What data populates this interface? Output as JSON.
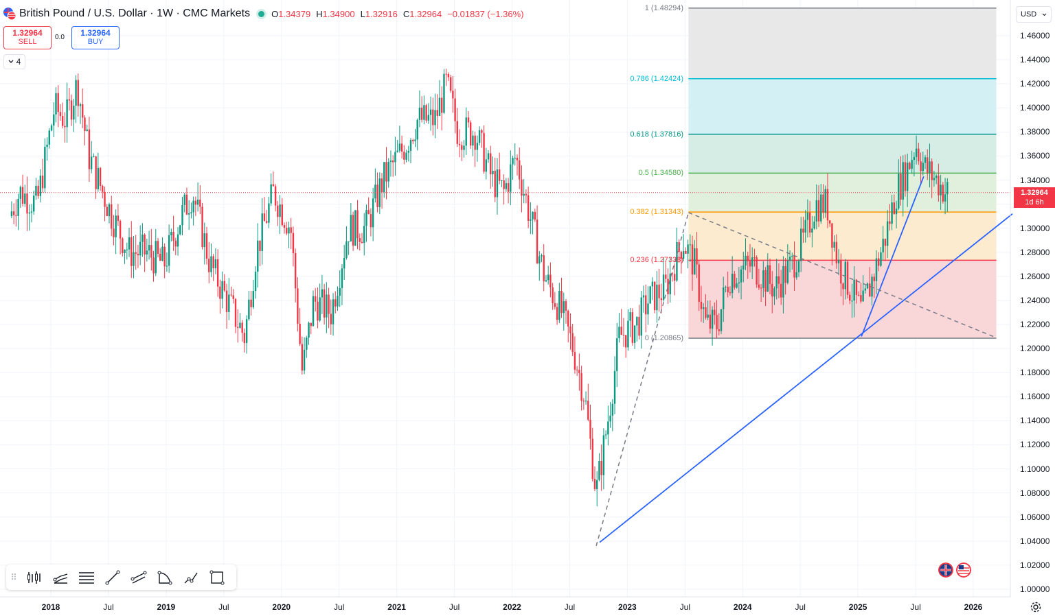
{
  "header": {
    "title": "British Pound / U.S. Dollar · 1W · CMC Markets",
    "ohlc": [
      {
        "k": "O",
        "v": "1.34379"
      },
      {
        "k": "H",
        "v": "1.34900"
      },
      {
        "k": "L",
        "v": "1.32916"
      },
      {
        "k": "C",
        "v": "1.32964"
      },
      {
        "k": "",
        "v": "−0.01837 (−1.36%)"
      }
    ]
  },
  "trade": {
    "sell_price": "1.32964",
    "sell_label": "SELL",
    "spread": "0.0",
    "buy_price": "1.32964",
    "buy_label": "BUY"
  },
  "indicators_count": "4",
  "currency_selector": "USD",
  "last_price": {
    "value": "1.32964",
    "countdown": "1d 6h"
  },
  "colors": {
    "up": "#089981",
    "down": "#f23645",
    "trendline": "#2962ff",
    "grid": "#f0f3fa"
  },
  "chart_data": {
    "type": "candlestick",
    "symbol": "GBPUSD",
    "interval": "1W",
    "ylim": [
      0.99,
      1.49
    ],
    "y_ticks": [
      "1.00000",
      "1.02000",
      "1.04000",
      "1.06000",
      "1.08000",
      "1.10000",
      "1.12000",
      "1.14000",
      "1.16000",
      "1.18000",
      "1.20000",
      "1.22000",
      "1.24000",
      "1.26000",
      "1.28000",
      "1.30000",
      "1.32000",
      "1.34000",
      "1.36000",
      "1.38000",
      "1.40000",
      "1.42000",
      "1.44000",
      "1.46000"
    ],
    "x_ticks": [
      {
        "label": "2018",
        "year": true,
        "t": 2018.0
      },
      {
        "label": "Jul",
        "year": false,
        "t": 2018.5
      },
      {
        "label": "2019",
        "year": true,
        "t": 2019.0
      },
      {
        "label": "Jul",
        "year": false,
        "t": 2019.5
      },
      {
        "label": "2020",
        "year": true,
        "t": 2020.0
      },
      {
        "label": "Jul",
        "year": false,
        "t": 2020.5
      },
      {
        "label": "2021",
        "year": true,
        "t": 2021.0
      },
      {
        "label": "Jul",
        "year": false,
        "t": 2021.5
      },
      {
        "label": "2022",
        "year": true,
        "t": 2022.0
      },
      {
        "label": "Jul",
        "year": false,
        "t": 2022.5
      },
      {
        "label": "2023",
        "year": true,
        "t": 2023.0
      },
      {
        "label": "Jul",
        "year": false,
        "t": 2023.5
      },
      {
        "label": "2024",
        "year": true,
        "t": 2024.0
      },
      {
        "label": "Jul",
        "year": false,
        "t": 2024.5
      },
      {
        "label": "2025",
        "year": true,
        "t": 2025.0
      },
      {
        "label": "Jul",
        "year": false,
        "t": 2025.5
      },
      {
        "label": "2026",
        "year": true,
        "t": 2026.0
      }
    ],
    "xlim": [
      2017.66,
      2026.3
    ],
    "price_anchors": [
      [
        2017.66,
        1.31
      ],
      [
        2017.75,
        1.33
      ],
      [
        2017.9,
        1.32
      ],
      [
        2018.05,
        1.4
      ],
      [
        2018.15,
        1.39
      ],
      [
        2018.25,
        1.42
      ],
      [
        2018.35,
        1.36
      ],
      [
        2018.55,
        1.31
      ],
      [
        2018.7,
        1.28
      ],
      [
        2018.85,
        1.28
      ],
      [
        2019.0,
        1.27
      ],
      [
        2019.15,
        1.31
      ],
      [
        2019.25,
        1.33
      ],
      [
        2019.4,
        1.27
      ],
      [
        2019.6,
        1.23
      ],
      [
        2019.7,
        1.21
      ],
      [
        2019.8,
        1.28
      ],
      [
        2019.95,
        1.33
      ],
      [
        2020.1,
        1.3
      ],
      [
        2020.2,
        1.18
      ],
      [
        2020.3,
        1.24
      ],
      [
        2020.45,
        1.23
      ],
      [
        2020.6,
        1.3
      ],
      [
        2020.75,
        1.3
      ],
      [
        2020.9,
        1.34
      ],
      [
        2021.1,
        1.37
      ],
      [
        2021.2,
        1.39
      ],
      [
        2021.35,
        1.39
      ],
      [
        2021.45,
        1.42
      ],
      [
        2021.55,
        1.38
      ],
      [
        2021.7,
        1.38
      ],
      [
        2021.85,
        1.34
      ],
      [
        2021.95,
        1.33
      ],
      [
        2022.05,
        1.36
      ],
      [
        2022.15,
        1.32
      ],
      [
        2022.3,
        1.26
      ],
      [
        2022.45,
        1.23
      ],
      [
        2022.55,
        1.2
      ],
      [
        2022.65,
        1.16
      ],
      [
        2022.75,
        1.08
      ],
      [
        2022.85,
        1.14
      ],
      [
        2022.95,
        1.21
      ],
      [
        2023.1,
        1.22
      ],
      [
        2023.2,
        1.24
      ],
      [
        2023.35,
        1.25
      ],
      [
        2023.5,
        1.29
      ],
      [
        2023.6,
        1.27
      ],
      [
        2023.7,
        1.22
      ],
      [
        2023.8,
        1.22
      ],
      [
        2023.9,
        1.26
      ],
      [
        2024.1,
        1.27
      ],
      [
        2024.3,
        1.25
      ],
      [
        2024.45,
        1.27
      ],
      [
        2024.55,
        1.29
      ],
      [
        2024.65,
        1.32
      ],
      [
        2024.75,
        1.32
      ],
      [
        2024.85,
        1.27
      ],
      [
        2024.95,
        1.25
      ],
      [
        2025.05,
        1.23
      ],
      [
        2025.15,
        1.26
      ],
      [
        2025.25,
        1.29
      ],
      [
        2025.35,
        1.33
      ],
      [
        2025.45,
        1.35
      ],
      [
        2025.52,
        1.37
      ],
      [
        2025.6,
        1.35
      ],
      [
        2025.7,
        1.34
      ],
      [
        2025.78,
        1.33
      ]
    ],
    "fibonacci": {
      "levels": [
        {
          "ratio": "1",
          "label": "1 (1.48294)",
          "price": 1.48294,
          "color": "#787b86",
          "fill": "#e8e8e8"
        },
        {
          "ratio": "0.786",
          "label": "0.786 (1.42424)",
          "price": 1.42424,
          "color": "#00bcd4",
          "fill": "#d3f0f5"
        },
        {
          "ratio": "0.618",
          "label": "0.618 (1.37816)",
          "price": 1.37816,
          "color": "#009688",
          "fill": "#d6ede6"
        },
        {
          "ratio": "0.5",
          "label": "0.5 (1.34580)",
          "price": 1.3458,
          "color": "#4caf50",
          "fill": "#e0f0dc"
        },
        {
          "ratio": "0.382",
          "label": "0.382 (1.31343)",
          "price": 1.31343,
          "color": "#ff9800",
          "fill": "#fdebd0"
        },
        {
          "ratio": "0.236",
          "label": "0.236 (1.27338)",
          "price": 1.27338,
          "color": "#f23645",
          "fill": "#f9d6d8"
        },
        {
          "ratio": "0",
          "label": "0 (1.20865)",
          "price": 1.20865,
          "color": "#787b86",
          "fill": null
        }
      ],
      "range_t": [
        2023.53,
        2026.2
      ]
    },
    "trendlines": [
      {
        "t1": 2022.76,
        "p1": 1.039,
        "t2": 2026.34,
        "p2": 1.312,
        "style": "solid"
      },
      {
        "t1": 2025.03,
        "p1": 1.21,
        "t2": 2025.57,
        "p2": 1.343,
        "style": "solid"
      },
      {
        "t1": 2022.73,
        "p1": 1.036,
        "t2": 2023.53,
        "p2": 1.313,
        "style": "dashed"
      },
      {
        "t1": 2023.53,
        "p1": 1.313,
        "t2": 2026.2,
        "p2": 1.209,
        "style": "dashed"
      }
    ]
  },
  "toolbar": {
    "tools": [
      "candles-tool-icon",
      "trend-channel-icon",
      "horizontal-lines-icon",
      "trendline-icon",
      "parallel-channel-icon",
      "curve-tool-icon",
      "path-tool-icon",
      "rectangle-tool-icon"
    ]
  }
}
